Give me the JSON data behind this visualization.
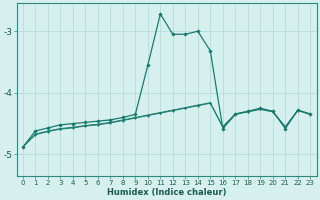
{
  "xlabel": "Humidex (Indice chaleur)",
  "background_color": "#d6f0ee",
  "grid_color": "#b0d8d4",
  "line_color": "#1a7a6e",
  "xlim": [
    -0.5,
    23.5
  ],
  "ylim": [
    -5.35,
    -2.55
  ],
  "yticks": [
    -5,
    -4,
    -3
  ],
  "xticks": [
    0,
    1,
    2,
    3,
    4,
    5,
    6,
    7,
    8,
    9,
    10,
    11,
    12,
    13,
    14,
    15,
    16,
    17,
    18,
    19,
    20,
    21,
    22,
    23
  ],
  "series": [
    {
      "x": [
        0,
        1,
        2,
        3,
        4,
        5,
        6,
        7,
        8,
        9,
        10,
        11,
        12,
        13,
        14,
        15,
        16,
        17,
        18,
        19,
        20,
        21,
        22,
        23
      ],
      "y": [
        -4.88,
        -4.62,
        -4.57,
        -4.52,
        -4.5,
        -4.48,
        -4.46,
        -4.44,
        -4.4,
        -4.35,
        -3.55,
        -2.72,
        -3.05,
        -3.05,
        -3.0,
        -3.32,
        -4.58,
        -4.35,
        -4.3,
        -4.25,
        -4.3,
        -4.58,
        -4.28,
        -4.35
      ]
    },
    {
      "x": [
        0,
        1,
        2,
        3,
        4,
        5,
        6,
        7,
        8,
        9,
        10,
        11,
        12,
        13,
        14,
        15,
        16,
        17,
        18,
        19,
        20,
        21,
        22,
        23
      ],
      "y": [
        -4.88,
        -4.67,
        -4.62,
        -4.58,
        -4.56,
        -4.53,
        -4.51,
        -4.48,
        -4.44,
        -4.4,
        -4.36,
        -4.32,
        -4.28,
        -4.24,
        -4.2,
        -4.16,
        -4.55,
        -4.34,
        -4.3,
        -4.26,
        -4.3,
        -4.55,
        -4.28,
        -4.34
      ]
    },
    {
      "x": [
        0,
        1,
        2,
        3,
        4,
        5,
        6,
        7,
        8,
        9,
        10,
        11,
        12,
        13,
        14,
        15,
        16,
        17,
        18,
        19,
        20,
        21,
        22,
        23
      ],
      "y": [
        -4.88,
        -4.68,
        -4.63,
        -4.59,
        -4.57,
        -4.54,
        -4.52,
        -4.49,
        -4.45,
        -4.41,
        -4.37,
        -4.33,
        -4.29,
        -4.25,
        -4.21,
        -4.17,
        -4.56,
        -4.35,
        -4.31,
        -4.27,
        -4.31,
        -4.56,
        -4.29,
        -4.35
      ]
    }
  ]
}
